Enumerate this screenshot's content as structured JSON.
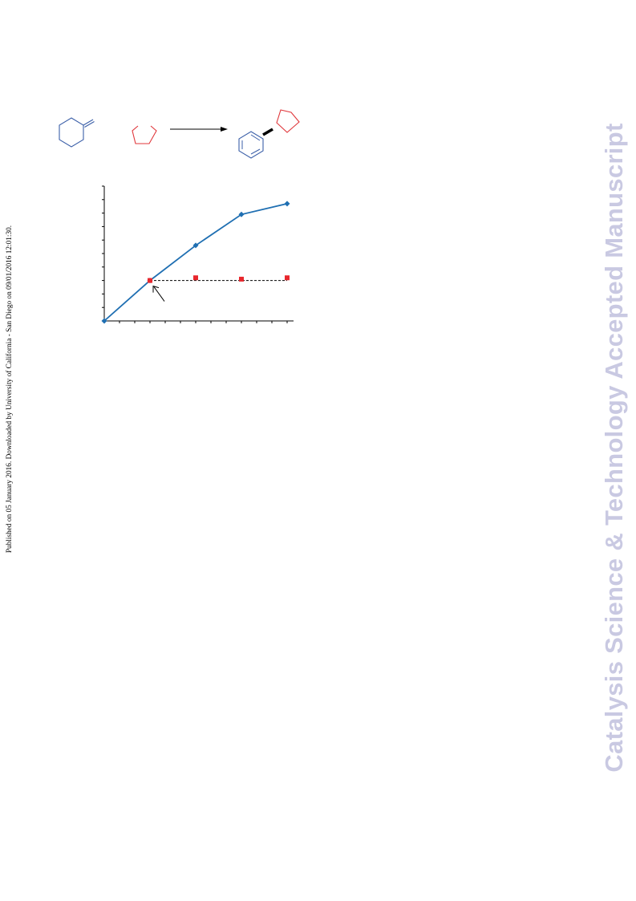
{
  "side_note": "Published on 05 January 2016. Downloaded by University of California - San Diego on 09/01/2016 12:01:30.",
  "watermark": "Catalysis Science & Technology Accepted Manuscript",
  "colors": {
    "reactant_a": "#3b5fa8",
    "reactant_b": "#e0373b",
    "series_1": "#1f6fb2",
    "series_2": "#e8272d",
    "arrow": "#000000"
  },
  "icons": [
    "methylenecyclohexane-structure",
    "tetrahydrofuran-structure",
    "reaction-arrow",
    "product-structure"
  ],
  "chart_data": {
    "type": "line",
    "title": "",
    "xlabel": "",
    "ylabel": "",
    "xlim": [
      0,
      4
    ],
    "ylim": [
      0,
      10
    ],
    "x_ticks": 12,
    "y_ticks": 10,
    "grid": false,
    "legend": "none",
    "series": [
      {
        "x": [
          0,
          1,
          2,
          3,
          4
        ],
        "values": [
          0,
          3.0,
          5.6,
          7.9,
          8.7
        ],
        "marker": "diamond",
        "style": "solid"
      },
      {
        "x": [
          1,
          2,
          3,
          4
        ],
        "values": [
          3.0,
          3.2,
          3.1,
          3.2
        ],
        "marker": "square",
        "style": "none"
      }
    ],
    "reference_line": {
      "y": 3.0,
      "from_x": 1,
      "to_x": 4,
      "style": "dashed"
    },
    "annotation_arrow": {
      "x": 1,
      "y": 3.0
    }
  }
}
